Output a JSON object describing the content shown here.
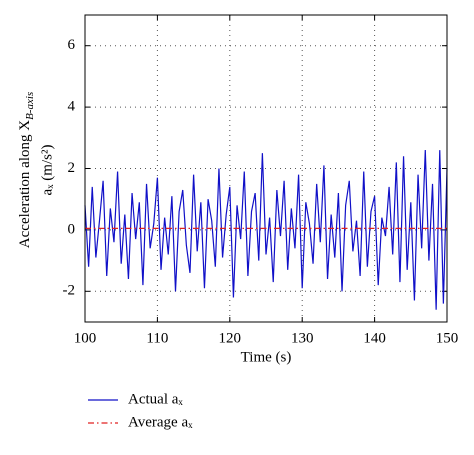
{
  "chart_data": {
    "type": "line",
    "xlabel": "Time (s)",
    "ylabel": [
      "Acceleration along X",
      "B-axis",
      "aₓ (m/s²)"
    ],
    "xlim": [
      100,
      150
    ],
    "xticks": [
      100,
      110,
      120,
      130,
      140,
      150
    ],
    "ylim": [
      -3,
      7
    ],
    "yticks": [
      -2,
      0,
      2,
      4,
      6
    ],
    "grid": true,
    "x": [
      100,
      100.5,
      101,
      101.5,
      102,
      102.5,
      103,
      103.5,
      104,
      104.5,
      105,
      105.5,
      106,
      106.5,
      107,
      107.5,
      108,
      108.5,
      109,
      109.5,
      110,
      110.5,
      111,
      111.5,
      112,
      112.5,
      113,
      113.5,
      114,
      114.5,
      115,
      115.5,
      116,
      116.5,
      117,
      117.5,
      118,
      118.5,
      119,
      119.5,
      120,
      120.5,
      121,
      121.5,
      122,
      122.5,
      123,
      123.5,
      124,
      124.5,
      125,
      125.5,
      126,
      126.5,
      127,
      127.5,
      128,
      128.5,
      129,
      129.5,
      130,
      130.5,
      131,
      131.5,
      132,
      132.5,
      133,
      133.5,
      134,
      134.5,
      135,
      135.5,
      136,
      136.5,
      137,
      137.5,
      138,
      138.5,
      139,
      139.5,
      140,
      140.5,
      141,
      141.5,
      142,
      142.5,
      143,
      143.5,
      144,
      144.5,
      145,
      145.5,
      146,
      146.5,
      147,
      147.5,
      148,
      148.5,
      149,
      149.5,
      150
    ],
    "series": [
      {
        "name": "Actual aₓ",
        "color": "#1010c8",
        "style": "solid",
        "values": [
          0.8,
          -1.2,
          1.4,
          -0.9,
          0.3,
          1.6,
          -1.5,
          0.7,
          -0.4,
          1.9,
          -1.1,
          0.5,
          -1.6,
          1.2,
          -0.3,
          0.9,
          -1.8,
          1.5,
          -0.6,
          0.2,
          1.7,
          -1.3,
          0.4,
          -0.8,
          1.1,
          -2.0,
          0.6,
          1.3,
          -0.5,
          -1.4,
          1.8,
          -0.7,
          0.9,
          -1.9,
          1.0,
          0.3,
          -1.2,
          2.0,
          -0.9,
          0.5,
          1.4,
          -2.2,
          0.8,
          -0.3,
          1.9,
          -1.5,
          0.6,
          1.2,
          -1.0,
          2.5,
          -0.8,
          0.4,
          -1.7,
          1.3,
          -0.2,
          1.6,
          -1.3,
          0.7,
          -0.6,
          1.8,
          -1.9,
          0.9,
          0.2,
          -1.1,
          1.5,
          -0.4,
          2.1,
          -1.6,
          0.5,
          -0.9,
          1.2,
          -2.0,
          0.8,
          1.6,
          -0.7,
          0.3,
          -1.5,
          1.9,
          -1.2,
          0.6,
          1.1,
          -1.8,
          0.4,
          -0.2,
          1.4,
          -0.8,
          2.2,
          -1.7,
          2.4,
          -1.3,
          0.9,
          -2.3,
          1.8,
          -0.6,
          2.6,
          -1.0,
          1.5,
          -2.6,
          2.6,
          -2.4,
          2.0
        ]
      },
      {
        "name": "Average aₓ",
        "color": "#e02020",
        "style": "dashdot",
        "x": [
          100,
          150
        ],
        "values": [
          0.05,
          0.05
        ]
      }
    ]
  }
}
